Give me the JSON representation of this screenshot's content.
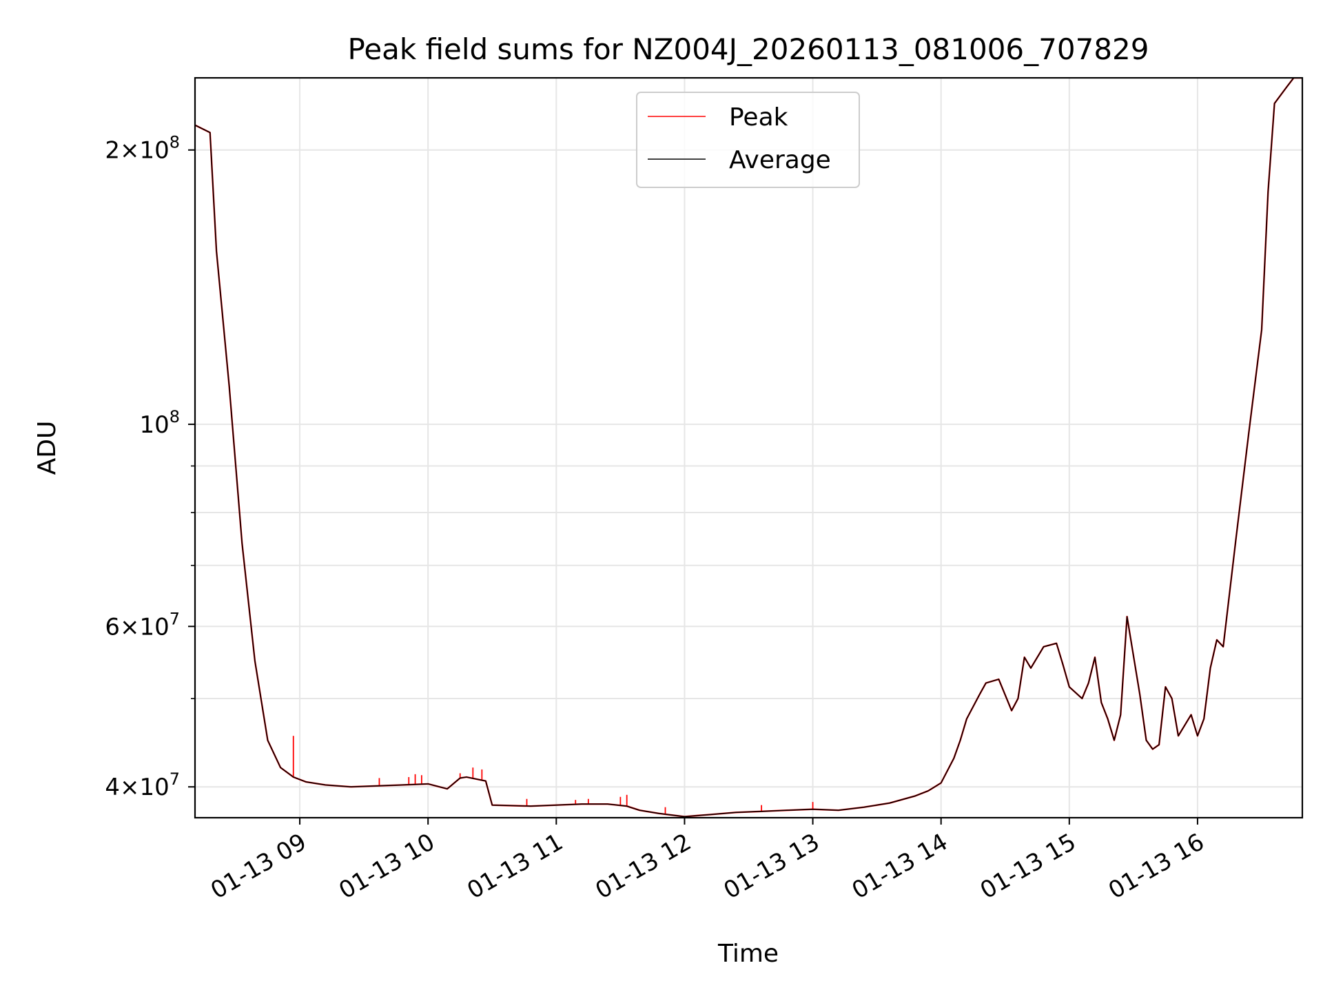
{
  "chart_data": {
    "type": "line",
    "title": "Peak field sums for NZ004J_20260113_081006_707829",
    "xlabel": "Time",
    "ylabel": "ADU",
    "yscale": "log",
    "ylim": [
      37000000,
      240000000
    ],
    "xlim": [
      8.183,
      16.817
    ],
    "grid": true,
    "legend_position": "top-center",
    "x_ticks": [
      {
        "value": 9,
        "label": "01-13 09"
      },
      {
        "value": 10,
        "label": "01-13 10"
      },
      {
        "value": 11,
        "label": "01-13 11"
      },
      {
        "value": 12,
        "label": "01-13 12"
      },
      {
        "value": 13,
        "label": "01-13 13"
      },
      {
        "value": 14,
        "label": "01-13 14"
      },
      {
        "value": 15,
        "label": "01-13 15"
      },
      {
        "value": 16,
        "label": "01-13 16"
      }
    ],
    "y_major_ticks": [
      {
        "value": 40000000,
        "mantissa": "4",
        "exponent": "7"
      },
      {
        "value": 60000000,
        "mantissa": "6",
        "exponent": "7"
      },
      {
        "value": 100000000,
        "mantissa": "",
        "exponent": "8"
      },
      {
        "value": 200000000,
        "mantissa": "2",
        "exponent": "8"
      }
    ],
    "y_minor_ticks": [
      50000000,
      70000000,
      80000000,
      90000000
    ],
    "series": [
      {
        "name": "Average",
        "color": "#000000",
        "x": [
          8.183,
          8.3,
          8.35,
          8.45,
          8.55,
          8.65,
          8.75,
          8.85,
          8.95,
          9.05,
          9.2,
          9.4,
          9.6,
          9.8,
          10.0,
          10.15,
          10.25,
          10.3,
          10.45,
          10.5,
          10.8,
          11.0,
          11.2,
          11.4,
          11.55,
          11.65,
          11.8,
          12.0,
          12.2,
          12.4,
          12.6,
          12.8,
          13.0,
          13.2,
          13.4,
          13.6,
          13.8,
          13.9,
          14.0,
          14.1,
          14.15,
          14.2,
          14.3,
          14.35,
          14.45,
          14.55,
          14.6,
          14.65,
          14.7,
          14.8,
          14.9,
          14.95,
          15.0,
          15.1,
          15.15,
          15.2,
          15.25,
          15.3,
          15.35,
          15.4,
          15.45,
          15.55,
          15.6,
          15.65,
          15.7,
          15.75,
          15.8,
          15.85,
          15.95,
          16.0,
          16.05,
          16.1,
          16.15,
          16.2,
          16.3,
          16.4,
          16.5,
          16.55,
          16.6,
          16.7,
          16.75,
          16.817
        ],
        "y": [
          213000000,
          209000000,
          155000000,
          110000000,
          74000000,
          55000000,
          45000000,
          42000000,
          41000000,
          40500000,
          40200000,
          40000000,
          40100000,
          40200000,
          40300000,
          39800000,
          40900000,
          41000000,
          40600000,
          38200000,
          38100000,
          38200000,
          38300000,
          38300000,
          38100000,
          37700000,
          37400000,
          37100000,
          37300000,
          37500000,
          37600000,
          37700000,
          37800000,
          37700000,
          38000000,
          38400000,
          39100000,
          39600000,
          40400000,
          43000000,
          45000000,
          47500000,
          50500000,
          52000000,
          52500000,
          48500000,
          50000000,
          55500000,
          54000000,
          57000000,
          57500000,
          54500000,
          51500000,
          50000000,
          52000000,
          55500000,
          49500000,
          47500000,
          45000000,
          48000000,
          61500000,
          50500000,
          45000000,
          44000000,
          44500000,
          51500000,
          50000000,
          45500000,
          48000000,
          45500000,
          47500000,
          54000000,
          58000000,
          57000000,
          75000000,
          98000000,
          127000000,
          180000000,
          225000000,
          235000000,
          240000000,
          240000000
        ]
      },
      {
        "name": "Peak",
        "color": "#ff0000",
        "spikes": [
          {
            "x": 8.95,
            "y": 45500000
          },
          {
            "x": 9.62,
            "y": 40900000
          },
          {
            "x": 9.85,
            "y": 41000000
          },
          {
            "x": 9.9,
            "y": 41300000
          },
          {
            "x": 9.95,
            "y": 41200000
          },
          {
            "x": 10.25,
            "y": 41400000
          },
          {
            "x": 10.35,
            "y": 42000000
          },
          {
            "x": 10.42,
            "y": 41800000
          },
          {
            "x": 10.77,
            "y": 38800000
          },
          {
            "x": 11.15,
            "y": 38700000
          },
          {
            "x": 11.25,
            "y": 38800000
          },
          {
            "x": 11.5,
            "y": 39000000
          },
          {
            "x": 11.55,
            "y": 39200000
          },
          {
            "x": 11.85,
            "y": 38000000
          },
          {
            "x": 12.6,
            "y": 38200000
          },
          {
            "x": 13.0,
            "y": 38500000
          }
        ]
      }
    ]
  }
}
